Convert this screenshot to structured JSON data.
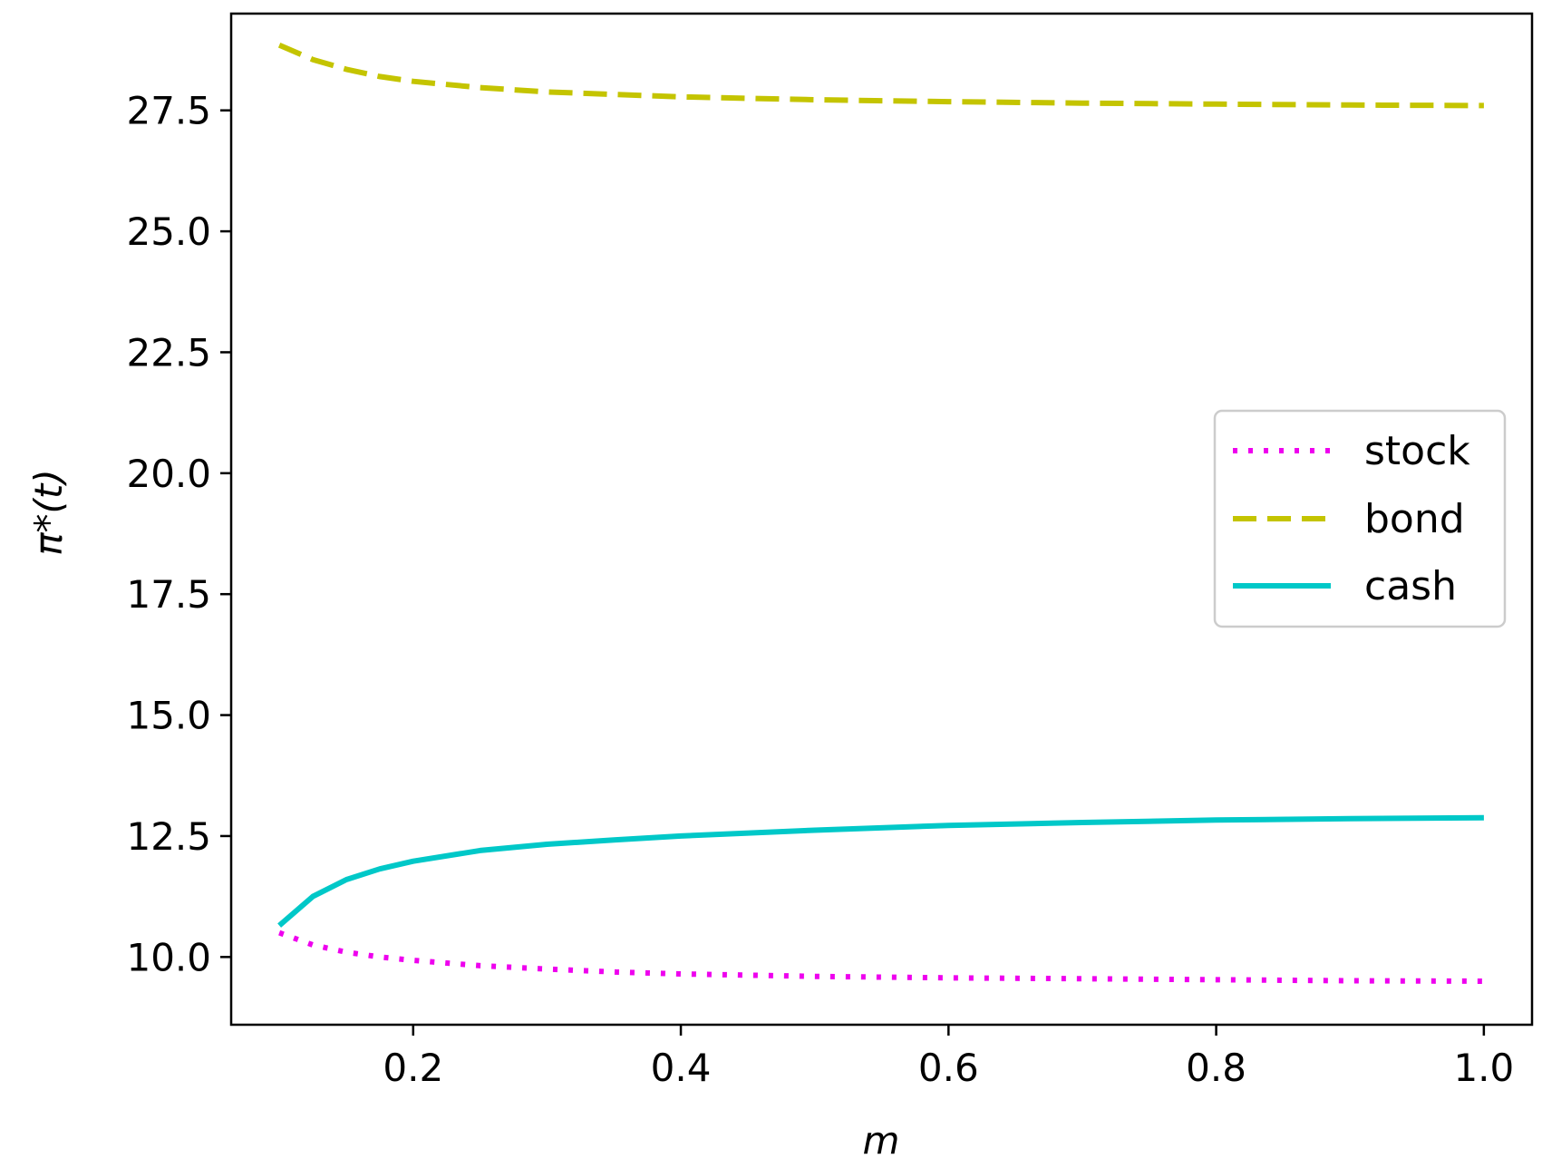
{
  "chart_data": {
    "type": "line",
    "xlabel": "m",
    "ylabel": "π*(t)",
    "xlim": [
      0.064,
      1.036
    ],
    "ylim": [
      8.6,
      29.5
    ],
    "xticks": [
      0.2,
      0.4,
      0.6,
      0.8,
      1.0
    ],
    "xtick_labels": [
      "0.2",
      "0.4",
      "0.6",
      "0.8",
      "1.0"
    ],
    "yticks": [
      10.0,
      12.5,
      15.0,
      17.5,
      20.0,
      22.5,
      25.0,
      27.5
    ],
    "ytick_labels": [
      "10.0",
      "12.5",
      "15.0",
      "17.5",
      "20.0",
      "22.5",
      "25.0",
      "27.5"
    ],
    "grid": false,
    "legend_position": "center-right",
    "x": [
      0.1,
      0.125,
      0.15,
      0.175,
      0.2,
      0.25,
      0.3,
      0.35,
      0.4,
      0.5,
      0.6,
      0.7,
      0.8,
      0.9,
      1.0
    ],
    "series": [
      {
        "name": "stock",
        "color": "#ee00ee",
        "style": "dotted",
        "values": [
          10.5,
          10.25,
          10.1,
          10.0,
          9.93,
          9.82,
          9.75,
          9.69,
          9.65,
          9.6,
          9.57,
          9.55,
          9.53,
          9.51,
          9.5
        ]
      },
      {
        "name": "bond",
        "color": "#c4c400",
        "style": "dashed",
        "values": [
          28.85,
          28.55,
          28.35,
          28.2,
          28.1,
          27.97,
          27.88,
          27.83,
          27.78,
          27.72,
          27.68,
          27.65,
          27.63,
          27.61,
          27.6
        ]
      },
      {
        "name": "cash",
        "color": "#00c8c8",
        "style": "solid",
        "values": [
          10.65,
          11.25,
          11.6,
          11.82,
          11.98,
          12.2,
          12.33,
          12.42,
          12.5,
          12.62,
          12.72,
          12.78,
          12.83,
          12.86,
          12.88
        ]
      }
    ]
  }
}
